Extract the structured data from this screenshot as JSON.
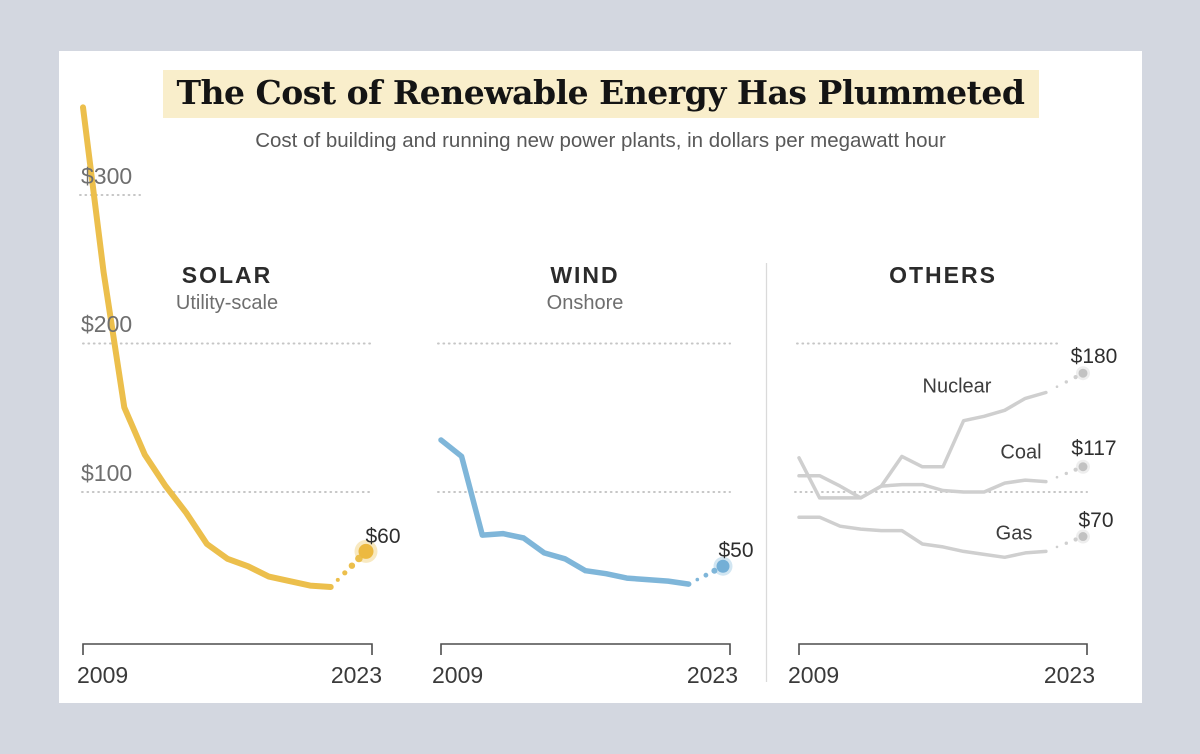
{
  "header": {
    "title": "The Cost of Renewable Energy Has Plummeted",
    "subtitle": "Cost of building and running new power plants, in dollars per megawatt hour"
  },
  "colors": {
    "background": "#d3d7e0",
    "card": "#ffffff",
    "title_highlight": "#f9eecb",
    "solar": "#ecbf4c",
    "wind": "#7fb6d9",
    "others": "#cfcfcf",
    "gridline": "#c6c6c6",
    "axis": "#4d4d4d",
    "separator": "#dadada"
  },
  "chart_data": {
    "type": "line",
    "title": "The Cost of Renewable Energy Has Plummeted",
    "subtitle": "Cost of building and running new power plants, in dollars per megawatt hour",
    "unit": "dollars per megawatt hour",
    "grid": "dotted horizontal",
    "ylim": [
      0,
      380
    ],
    "x_solid_years": [
      2009,
      2010,
      2011,
      2012,
      2013,
      2014,
      2015,
      2016,
      2017,
      2018,
      2019,
      2020,
      2021
    ],
    "x_projected_year": 2023,
    "projection_style": "dotted",
    "x_axis": {
      "start_label": "2009",
      "end_label": "2023"
    },
    "y_ticks": [
      {
        "value": 300,
        "label": "$300"
      },
      {
        "value": 200,
        "label": "$200"
      },
      {
        "value": 100,
        "label": "$100"
      }
    ],
    "panels": [
      {
        "key": "solar",
        "title": "SOLAR",
        "subtitle": "Utility-scale",
        "color": "#ecbf4c",
        "dot_color": "#ecb940",
        "series": [
          {
            "name": "Solar utility-scale",
            "values": [
              359,
              248,
              157,
              125,
              104,
              86,
              65,
              55,
              50,
              43,
              40,
              37,
              36
            ],
            "projected_value": 60,
            "end_label": "$60"
          }
        ]
      },
      {
        "key": "wind",
        "title": "WIND",
        "subtitle": "Onshore",
        "color": "#7fb6d9",
        "dot_color": "#74afd6",
        "series": [
          {
            "name": "Wind onshore",
            "values": [
              135,
              124,
              71,
              72,
              69,
              59,
              55,
              47,
              45,
              42,
              41,
              40,
              38
            ],
            "projected_value": 50,
            "end_label": "$50"
          }
        ]
      },
      {
        "key": "others",
        "title": "OTHERS",
        "subtitle": "",
        "color": "#cfcfcf",
        "dot_color": "#c2c2c2",
        "series": [
          {
            "name": "Nuclear",
            "values": [
              123,
              96,
              96,
              96,
              104,
              124,
              117,
              117,
              148,
              151,
              155,
              163,
              167
            ],
            "projected_value": 180,
            "end_label": "$180"
          },
          {
            "name": "Coal",
            "values": [
              111,
              111,
              104,
              96,
              104,
              105,
              105,
              101,
              100,
              100,
              106,
              108,
              107
            ],
            "projected_value": 117,
            "end_label": "$117"
          },
          {
            "name": "Gas",
            "values": [
              83,
              83,
              77,
              75,
              74,
              74,
              65,
              63,
              60,
              58,
              56,
              59,
              60
            ],
            "projected_value": 70,
            "end_label": "$70"
          }
        ]
      }
    ]
  }
}
